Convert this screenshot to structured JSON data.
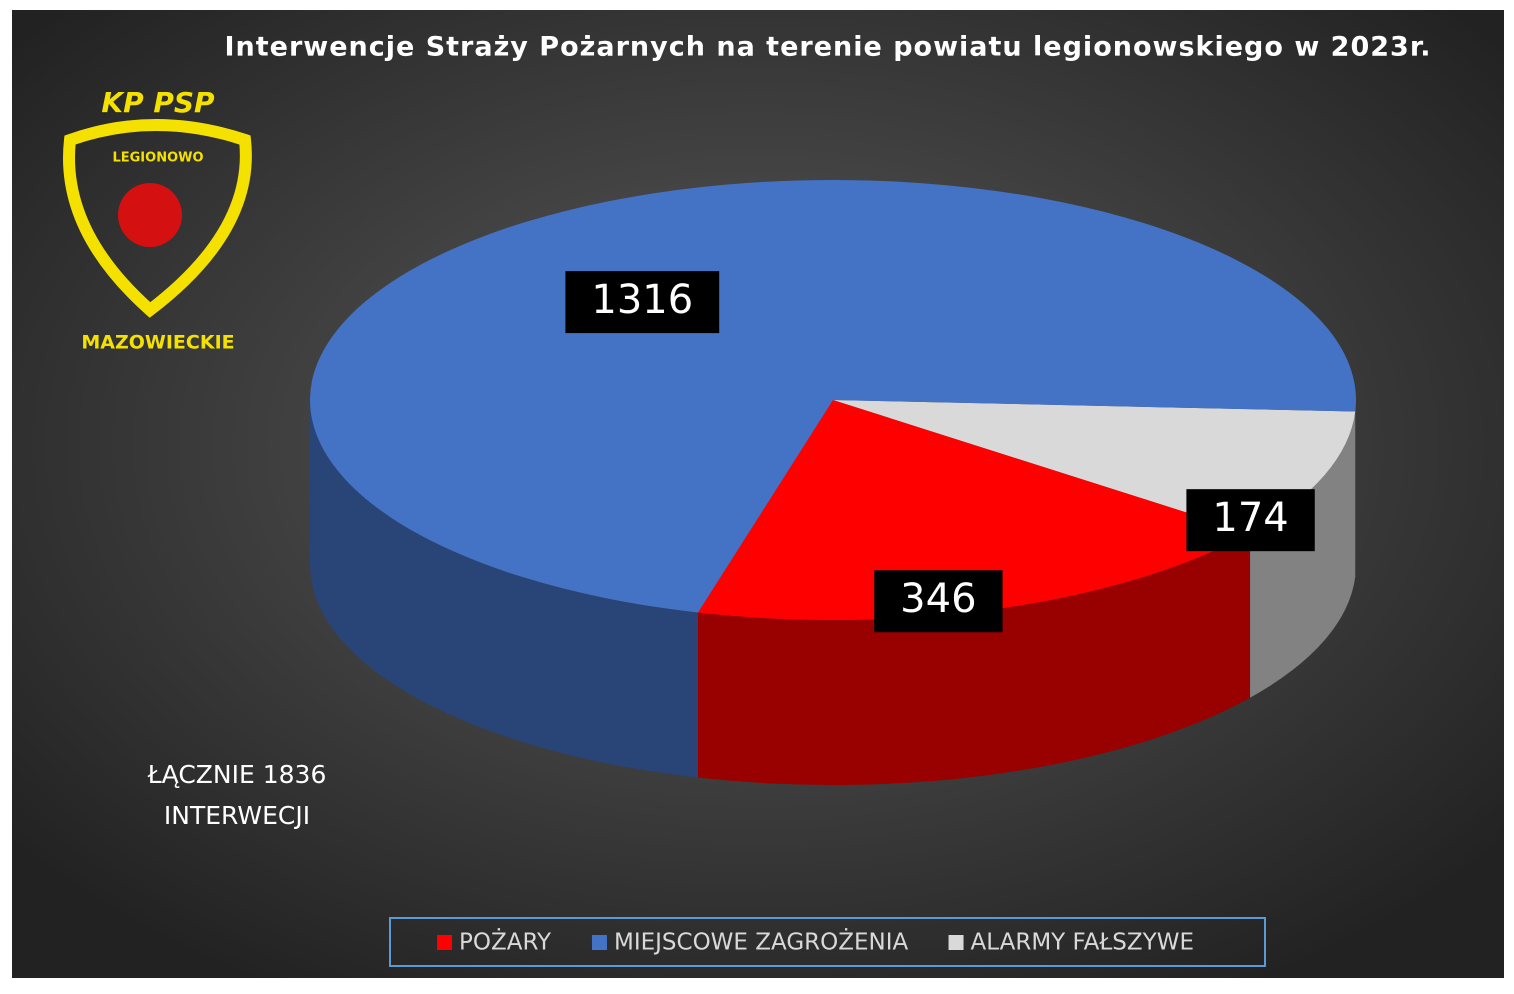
{
  "chart_data": {
    "type": "pie3d",
    "title": "Interwencje Straży Pożarnych na terenie powiatu legionowskiego w 2023r.",
    "categories": [
      "POŻARY",
      "MIEJSCOWE ZAGROŻENIA",
      "ALARMY FAŁSZYWE"
    ],
    "values": [
      346,
      1316,
      174
    ],
    "colors": [
      "#ff0000",
      "#4472c4",
      "#d9d9d9"
    ],
    "annotation": [
      "ŁĄCZNIE 1836",
      "INTERWECJI"
    ],
    "logo_texts": [
      "KP PSP",
      "LEGIONOWO",
      "MAZOWIECKIE"
    ],
    "legend": "bottom"
  }
}
